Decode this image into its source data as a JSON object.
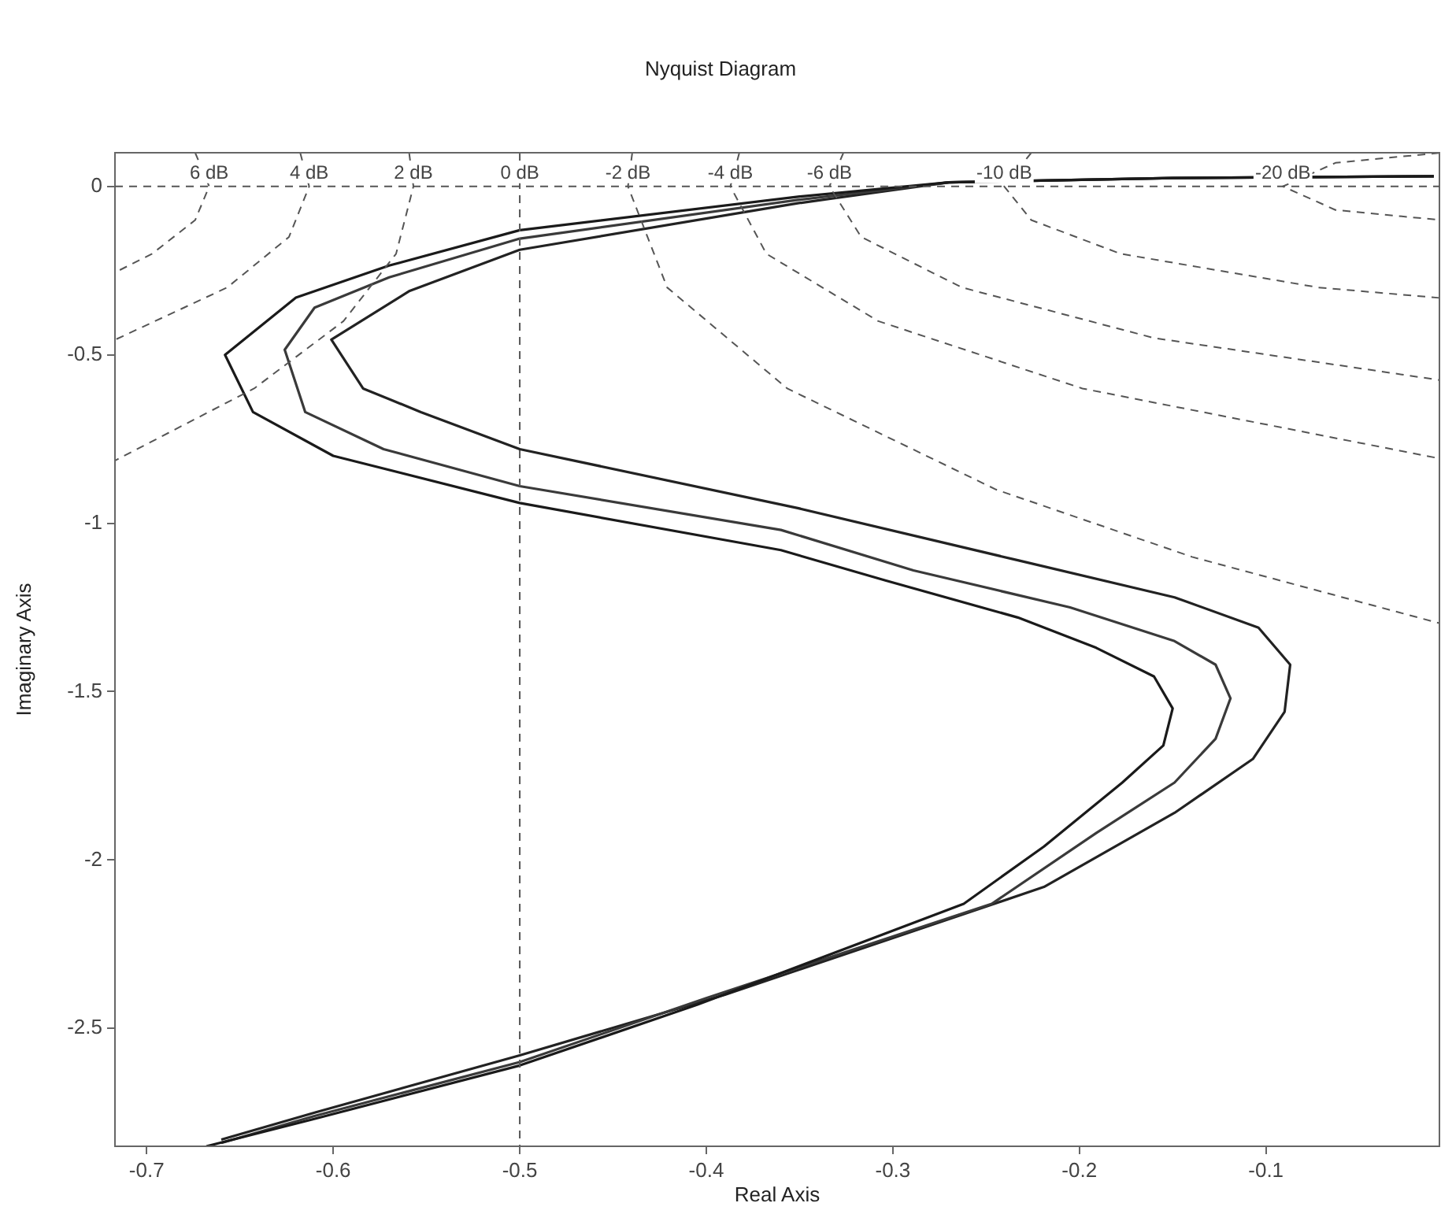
{
  "chart_data": {
    "type": "line",
    "title": "Nyquist Diagram",
    "xlabel": "Real Axis",
    "ylabel": "Imaginary Axis",
    "xlim": [
      -0.717,
      -0.007
    ],
    "xticks": [
      -0.7,
      -0.6,
      -0.5,
      -0.4,
      -0.3,
      -0.2,
      -0.1
    ],
    "ylim": [
      -2.85,
      0.1
    ],
    "yticks": [
      -2.5,
      -2,
      -1.5,
      -1,
      -0.5,
      0
    ],
    "grid": false,
    "legend": false,
    "marker": "none",
    "ref_lines": [
      {
        "axis": "y",
        "value": 0,
        "color": "#555555",
        "line_style": "dashed"
      }
    ],
    "series": [
      {
        "name": "6 dB",
        "color": "#555555",
        "line_style": "dashed",
        "x": [
          -0.674,
          -0.6665,
          -0.674,
          -0.6971,
          -0.717
        ],
        "values": [
          0.1,
          0,
          -0.1,
          -0.2,
          -0.2555
        ]
      },
      {
        "name": "4 dB",
        "color": "#555555",
        "line_style": "dashed",
        "x": [
          -0.6177,
          -0.6129,
          -0.6237,
          -0.6568,
          -0.717
        ],
        "values": [
          0.1,
          0,
          -0.15,
          -0.3,
          -0.4555
        ]
      },
      {
        "name": "2 dB",
        "color": "#555555",
        "line_style": "dashed",
        "x": [
          -0.5593,
          -0.557,
          -0.5663,
          -0.5945,
          -0.6424,
          -0.717
        ],
        "values": [
          0.1,
          0,
          -0.2,
          -0.4,
          -0.6,
          -0.814
        ]
      },
      {
        "name": "0 dB",
        "color": "#555555",
        "line_style": "dashed",
        "x": [
          -0.5,
          -0.5,
          -0.5
        ],
        "values": [
          0.1,
          0,
          -2.85
        ]
      },
      {
        "name": "-2 dB",
        "color": "#555555",
        "line_style": "dashed",
        "x": [
          -0.4397,
          -0.442,
          -0.421,
          -0.3566,
          -0.2447,
          -0.1396,
          -0.007
        ],
        "values": [
          0.1,
          0,
          -0.3,
          -0.6,
          -0.9,
          -1.1,
          -1.297
        ]
      },
      {
        "name": "-4 dB",
        "color": "#555555",
        "line_style": "dashed",
        "x": [
          -0.3823,
          -0.3871,
          -0.3678,
          -0.3078,
          -0.1984,
          -0.007
        ],
        "values": [
          0.1,
          0,
          -0.2,
          -0.4,
          -0.6,
          -0.8077
        ]
      },
      {
        "name": "-6 dB",
        "color": "#555555",
        "line_style": "dashed",
        "x": [
          -0.3265,
          -0.334,
          -0.317,
          -0.263,
          -0.1601,
          -0.007
        ],
        "values": [
          0.1,
          0,
          -0.15,
          -0.3,
          -0.45,
          -0.575
        ]
      },
      {
        "name": "-10 dB",
        "color": "#555555",
        "line_style": "dashed",
        "x": [
          -0.2258,
          -0.2403,
          -0.2258,
          -0.1779,
          -0.0719,
          -0.007
        ],
        "values": [
          0.1,
          0,
          -0.1,
          -0.2,
          -0.3,
          -0.331
        ]
      },
      {
        "name": "-20 dB",
        "color": "#555555",
        "line_style": "dashed",
        "x": [
          -0.007,
          -0.0627,
          -0.0909,
          -0.0627,
          -0.007
        ],
        "values": [
          0.0995,
          0.07,
          0,
          -0.07,
          -0.0995
        ]
      },
      {
        "color": "#1a1a1a",
        "x": [
          -0.01,
          -0.15,
          -0.27,
          -0.35,
          -0.5,
          -0.57,
          -0.62,
          -0.658,
          -0.643,
          -0.6,
          -0.5,
          -0.36,
          -0.304,
          -0.233,
          -0.191,
          -0.16,
          -0.15,
          -0.155,
          -0.177,
          -0.219,
          -0.262,
          -0.405,
          -0.5,
          -0.611,
          -0.668
        ],
        "values": [
          0.03,
          0.025,
          0.012,
          -0.03,
          -0.13,
          -0.235,
          -0.33,
          -0.5,
          -0.67,
          -0.8,
          -0.94,
          -1.08,
          -1.17,
          -1.28,
          -1.37,
          -1.455,
          -1.55,
          -1.66,
          -1.77,
          -1.96,
          -2.13,
          -2.43,
          -2.61,
          -2.77,
          -2.85
        ]
      },
      {
        "color": "#3a3a3a",
        "x": [
          -0.01,
          -0.15,
          -0.27,
          -0.351,
          -0.5,
          -0.57,
          -0.61,
          -0.626,
          -0.615,
          -0.573,
          -0.5,
          -0.36,
          -0.289,
          -0.205,
          -0.149,
          -0.127,
          -0.119,
          -0.127,
          -0.149,
          -0.191,
          -0.247,
          -0.4,
          -0.5,
          -0.61,
          -0.66
        ],
        "values": [
          0.03,
          0.025,
          0.012,
          -0.04,
          -0.155,
          -0.27,
          -0.36,
          -0.485,
          -0.67,
          -0.78,
          -0.89,
          -1.02,
          -1.14,
          -1.25,
          -1.35,
          -1.42,
          -1.52,
          -1.64,
          -1.77,
          -1.92,
          -2.13,
          -2.41,
          -2.6,
          -2.76,
          -2.84
        ]
      },
      {
        "color": "#222222",
        "x": [
          -0.01,
          -0.15,
          -0.27,
          -0.351,
          -0.5,
          -0.559,
          -0.601,
          -0.584,
          -0.553,
          -0.5,
          -0.351,
          -0.233,
          -0.149,
          -0.104,
          -0.087,
          -0.09,
          -0.107,
          -0.149,
          -0.219,
          -0.39,
          -0.5,
          -0.61,
          -0.66
        ],
        "values": [
          0.03,
          0.025,
          0.012,
          -0.05,
          -0.188,
          -0.31,
          -0.455,
          -0.6,
          -0.67,
          -0.78,
          -0.955,
          -1.11,
          -1.22,
          -1.31,
          -1.42,
          -1.56,
          -1.7,
          -1.86,
          -2.08,
          -2.4,
          -2.58,
          -2.75,
          -2.83
        ]
      }
    ]
  }
}
